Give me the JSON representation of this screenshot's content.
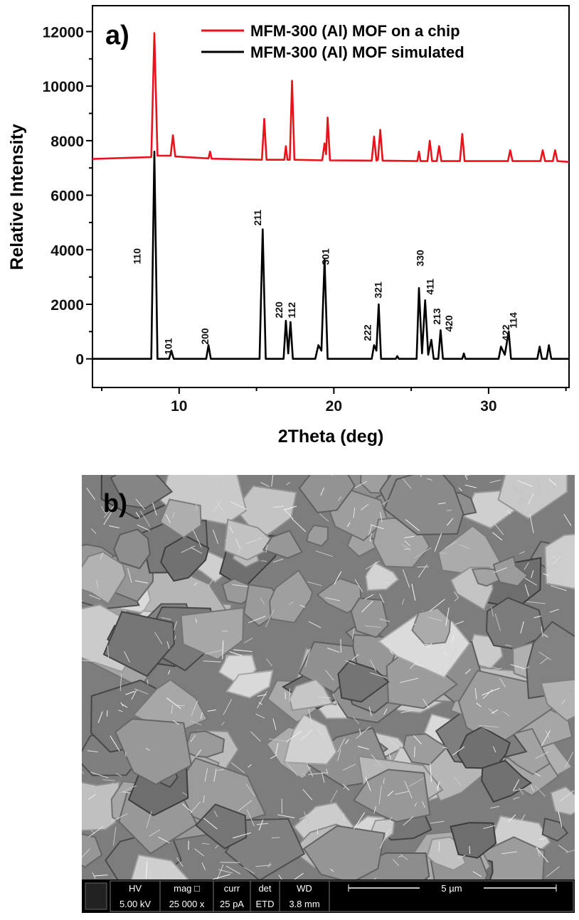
{
  "chart_data": {
    "type": "line",
    "panel_label": "a)",
    "xlabel": "2Theta (deg)",
    "ylabel": "Relative Intensity",
    "xlim": [
      4.4,
      35.2
    ],
    "xticks": [
      10,
      20,
      30
    ],
    "xminorticks": [
      5,
      15,
      25,
      35
    ],
    "ylim": [
      -1050,
      12950
    ],
    "yticks": [
      0,
      2000,
      4000,
      6000,
      8000,
      10000,
      12000
    ],
    "yminorticks": [
      1000,
      3000,
      5000,
      7000,
      9000,
      11000
    ],
    "legend": "top-right",
    "series": [
      {
        "name": "MFM-300 (Al) MOF on a chip",
        "color": "#e8141c",
        "x": [
          4.4,
          8.2,
          8.4,
          8.6,
          9.45,
          9.6,
          9.75,
          11.9,
          12.0,
          12.1,
          15.35,
          15.5,
          15.65,
          16.8,
          16.9,
          17.0,
          17.15,
          17.3,
          17.45,
          19.25,
          19.4,
          19.5,
          19.6,
          19.75,
          22.45,
          22.6,
          22.75,
          22.85,
          23.0,
          23.15,
          25.4,
          25.5,
          25.6,
          26.05,
          26.2,
          26.35,
          26.65,
          26.8,
          26.95,
          28.15,
          28.3,
          28.45,
          31.25,
          31.4,
          31.55,
          33.35,
          33.5,
          33.65,
          34.15,
          34.3,
          34.45,
          35.2
        ],
        "values": [
          7330,
          7400,
          11950,
          7450,
          7450,
          8200,
          7420,
          7350,
          7600,
          7340,
          7300,
          8800,
          7300,
          7300,
          7800,
          7300,
          7300,
          10200,
          7300,
          7280,
          7900,
          7500,
          8850,
          7280,
          7270,
          8150,
          7270,
          7300,
          8400,
          7270,
          7250,
          7600,
          7250,
          7250,
          8000,
          7250,
          7250,
          7800,
          7250,
          7250,
          8250,
          7250,
          7250,
          7650,
          7250,
          7250,
          7650,
          7250,
          7250,
          7650,
          7250,
          7220
        ]
      },
      {
        "name": "MFM-300 (Al) MOF simulated",
        "color": "#000000",
        "x": [
          4.4,
          8.2,
          8.4,
          8.6,
          9.35,
          9.5,
          9.65,
          11.75,
          11.9,
          12.05,
          15.2,
          15.4,
          15.6,
          16.75,
          16.9,
          17.05,
          17.2,
          17.35,
          18.8,
          19.0,
          19.2,
          19.4,
          19.6,
          22.45,
          22.6,
          22.75,
          22.9,
          23.05,
          24.0,
          24.1,
          24.2,
          25.35,
          25.5,
          25.7,
          25.9,
          26.1,
          26.3,
          26.45,
          26.75,
          26.9,
          27.05,
          28.3,
          28.4,
          28.5,
          30.65,
          30.8,
          31.05,
          31.3,
          31.45,
          33.15,
          33.3,
          33.45,
          33.75,
          33.9,
          34.05,
          35.2
        ],
        "values": [
          0,
          0,
          7600,
          0,
          0,
          300,
          0,
          0,
          500,
          0,
          0,
          4750,
          0,
          0,
          1400,
          200,
          1350,
          0,
          0,
          500,
          300,
          3650,
          0,
          0,
          500,
          300,
          2000,
          0,
          0,
          100,
          0,
          0,
          2600,
          200,
          2150,
          150,
          700,
          0,
          0,
          1050,
          0,
          0,
          200,
          0,
          0,
          450,
          150,
          1000,
          0,
          0,
          450,
          0,
          0,
          500,
          0,
          0
        ]
      }
    ],
    "annotations": [
      {
        "text": "110",
        "x": 7.28,
        "y": 3470
      },
      {
        "text": "101",
        "x": 9.3,
        "y": 150
      },
      {
        "text": "200",
        "x": 11.66,
        "y": 520
      },
      {
        "text": "211",
        "x": 15.07,
        "y": 4880
      },
      {
        "text": "220",
        "x": 16.45,
        "y": 1490
      },
      {
        "text": "112",
        "x": 17.28,
        "y": 1490
      },
      {
        "text": "301",
        "x": 19.45,
        "y": 3440
      },
      {
        "text": "222",
        "x": 22.17,
        "y": 650
      },
      {
        "text": "321",
        "x": 22.86,
        "y": 2220
      },
      {
        "text": "330",
        "x": 25.58,
        "y": 3390
      },
      {
        "text": "411",
        "x": 26.22,
        "y": 2350
      },
      {
        "text": "213",
        "x": 26.64,
        "y": 1250
      },
      {
        "text": "420",
        "x": 27.42,
        "y": 990
      },
      {
        "text": "422",
        "x": 31.1,
        "y": 650
      },
      {
        "text": "114",
        "x": 31.6,
        "y": 1120
      }
    ]
  },
  "sem": {
    "panel_label": "b)",
    "info": [
      {
        "name": "HV",
        "value": "5.00 kV"
      },
      {
        "name": "mag □",
        "value": "25 000 x"
      },
      {
        "name": "curr",
        "value": "25 pA"
      },
      {
        "name": "det",
        "value": "ETD"
      },
      {
        "name": "WD",
        "value": "3.8 mm"
      }
    ],
    "scale": "5 µm"
  }
}
